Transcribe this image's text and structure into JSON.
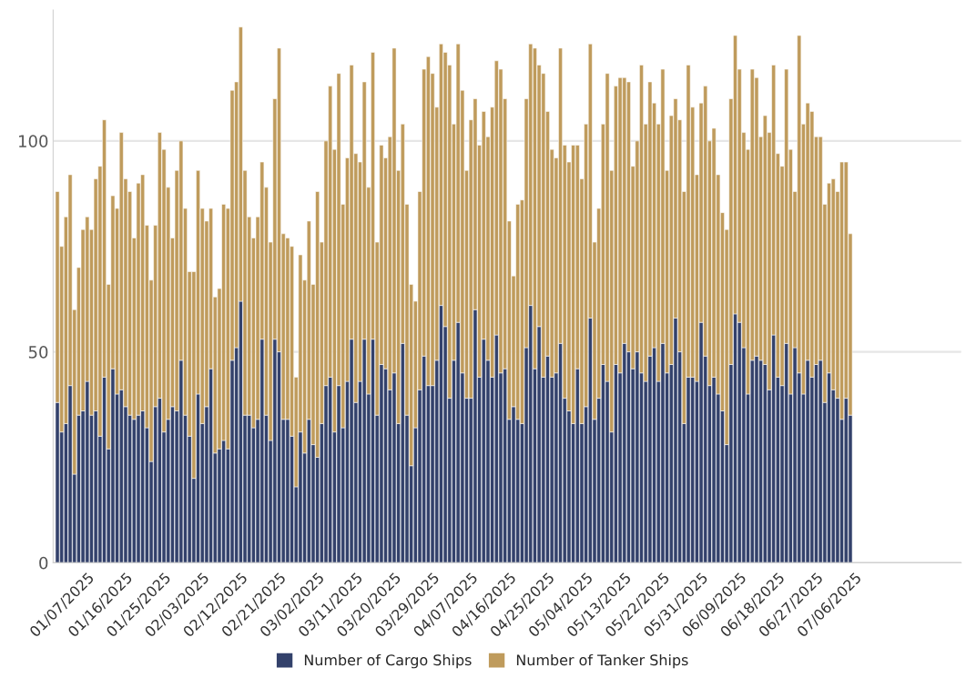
{
  "chart_data": {
    "type": "bar",
    "stacked": true,
    "x": [
      "2024-12-31",
      "2025-01-01",
      "2025-01-02",
      "2025-01-03",
      "2025-01-04",
      "2025-01-05",
      "2025-01-06",
      "2025-01-07",
      "2025-01-08",
      "2025-01-09",
      "2025-01-10",
      "2025-01-11",
      "2025-01-12",
      "2025-01-13",
      "2025-01-14",
      "2025-01-15",
      "2025-01-16",
      "2025-01-17",
      "2025-01-18",
      "2025-01-19",
      "2025-01-20",
      "2025-01-21",
      "2025-01-22",
      "2025-01-23",
      "2025-01-24",
      "2025-01-25",
      "2025-01-26",
      "2025-01-27",
      "2025-01-28",
      "2025-01-29",
      "2025-01-30",
      "2025-01-31",
      "2025-02-01",
      "2025-02-02",
      "2025-02-03",
      "2025-02-04",
      "2025-02-05",
      "2025-02-06",
      "2025-02-07",
      "2025-02-08",
      "2025-02-09",
      "2025-02-10",
      "2025-02-11",
      "2025-02-12",
      "2025-02-13",
      "2025-02-14",
      "2025-02-15",
      "2025-02-16",
      "2025-02-17",
      "2025-02-18",
      "2025-02-19",
      "2025-02-20",
      "2025-02-21",
      "2025-02-22",
      "2025-02-23",
      "2025-02-24",
      "2025-02-25",
      "2025-02-26",
      "2025-02-27",
      "2025-02-28",
      "2025-03-01",
      "2025-03-02",
      "2025-03-03",
      "2025-03-04",
      "2025-03-05",
      "2025-03-06",
      "2025-03-07",
      "2025-03-08",
      "2025-03-09",
      "2025-03-10",
      "2025-03-11",
      "2025-03-12",
      "2025-03-13",
      "2025-03-14",
      "2025-03-15",
      "2025-03-16",
      "2025-03-17",
      "2025-03-18",
      "2025-03-19",
      "2025-03-20",
      "2025-03-21",
      "2025-03-22",
      "2025-03-23",
      "2025-03-24",
      "2025-03-25",
      "2025-03-26",
      "2025-03-27",
      "2025-03-28",
      "2025-03-29",
      "2025-03-30",
      "2025-03-31",
      "2025-04-01",
      "2025-04-02",
      "2025-04-03",
      "2025-04-04",
      "2025-04-05",
      "2025-04-06",
      "2025-04-07",
      "2025-04-08",
      "2025-04-09",
      "2025-04-10",
      "2025-04-11",
      "2025-04-12",
      "2025-04-13",
      "2025-04-14",
      "2025-04-15",
      "2025-04-16",
      "2025-04-17",
      "2025-04-18",
      "2025-04-19",
      "2025-04-20",
      "2025-04-21",
      "2025-04-22",
      "2025-04-23",
      "2025-04-24",
      "2025-04-25",
      "2025-04-26",
      "2025-04-27",
      "2025-04-28",
      "2025-04-29",
      "2025-04-30",
      "2025-05-01",
      "2025-05-02",
      "2025-05-03",
      "2025-05-04",
      "2025-05-05",
      "2025-05-06",
      "2025-05-07",
      "2025-05-08",
      "2025-05-09",
      "2025-05-10",
      "2025-05-11",
      "2025-05-12",
      "2025-05-13",
      "2025-05-14",
      "2025-05-15",
      "2025-05-16",
      "2025-05-17",
      "2025-05-18",
      "2025-05-19",
      "2025-05-20",
      "2025-05-21",
      "2025-05-22",
      "2025-05-23",
      "2025-05-24",
      "2025-05-25",
      "2025-05-26",
      "2025-05-27",
      "2025-05-28",
      "2025-05-29",
      "2025-05-30",
      "2025-05-31",
      "2025-06-01",
      "2025-06-02",
      "2025-06-03",
      "2025-06-04",
      "2025-06-05",
      "2025-06-06",
      "2025-06-07",
      "2025-06-08",
      "2025-06-09",
      "2025-06-10",
      "2025-06-11",
      "2025-06-12",
      "2025-06-13",
      "2025-06-14",
      "2025-06-15",
      "2025-06-16",
      "2025-06-17",
      "2025-06-18",
      "2025-06-19",
      "2025-06-20",
      "2025-06-21",
      "2025-06-22",
      "2025-06-23",
      "2025-06-24",
      "2025-06-25",
      "2025-06-26",
      "2025-06-27",
      "2025-06-28",
      "2025-06-29",
      "2025-06-30",
      "2025-07-01",
      "2025-07-02",
      "2025-07-03",
      "2025-07-04",
      "2025-07-05"
    ],
    "series": [
      {
        "name": "Number of Cargo Ships",
        "color": "#33416b",
        "values": [
          38,
          31,
          33,
          42,
          21,
          35,
          36,
          43,
          35,
          36,
          30,
          44,
          27,
          46,
          40,
          41,
          37,
          35,
          34,
          35,
          36,
          32,
          24,
          37,
          39,
          31,
          34,
          37,
          36,
          48,
          35,
          30,
          20,
          40,
          33,
          37,
          46,
          26,
          27,
          29,
          27,
          48,
          51,
          62,
          35,
          35,
          32,
          34,
          53,
          35,
          29,
          53,
          50,
          34,
          34,
          30,
          18,
          31,
          26,
          34,
          28,
          25,
          33,
          42,
          44,
          31,
          42,
          32,
          43,
          53,
          38,
          43,
          53,
          40,
          53,
          35,
          47,
          46,
          41,
          45,
          33,
          52,
          35,
          23,
          32,
          41,
          49,
          42,
          42,
          48,
          61,
          56,
          39,
          48,
          57,
          45,
          39,
          39,
          60,
          44,
          53,
          48,
          44,
          54,
          45,
          46,
          34,
          37,
          34,
          33,
          51,
          61,
          46,
          56,
          44,
          49,
          44,
          45,
          52,
          39,
          36,
          33,
          46,
          33,
          37,
          58,
          34,
          39,
          47,
          43,
          31,
          47,
          45,
          52,
          50,
          46,
          50,
          45,
          43,
          49,
          51,
          43,
          52,
          45,
          47,
          58,
          50,
          33,
          44,
          44,
          43,
          57,
          49,
          42,
          44,
          40,
          36,
          28,
          47,
          59,
          57,
          51,
          40,
          48,
          49,
          48,
          47,
          41,
          54,
          44,
          42,
          52,
          40,
          51,
          45,
          40,
          48,
          44,
          47,
          48,
          38,
          45,
          41,
          39,
          34,
          39,
          35
        ]
      },
      {
        "name": "Number of Tanker Ships",
        "color": "#bf9b5c",
        "values": [
          50,
          44,
          49,
          50,
          39,
          35,
          43,
          39,
          44,
          55,
          64,
          61,
          39,
          41,
          44,
          61,
          54,
          53,
          43,
          55,
          56,
          48,
          43,
          43,
          63,
          67,
          55,
          40,
          57,
          52,
          49,
          39,
          49,
          53,
          51,
          44,
          38,
          37,
          38,
          56,
          57,
          64,
          63,
          65,
          58,
          47,
          45,
          48,
          42,
          54,
          47,
          57,
          72,
          44,
          43,
          45,
          26,
          42,
          41,
          47,
          38,
          63,
          43,
          58,
          69,
          67,
          74,
          53,
          53,
          65,
          59,
          52,
          61,
          49,
          68,
          41,
          52,
          50,
          60,
          77,
          60,
          52,
          50,
          43,
          30,
          47,
          68,
          78,
          74,
          60,
          62,
          65,
          79,
          56,
          66,
          67,
          54,
          66,
          50,
          55,
          54,
          53,
          64,
          65,
          72,
          64,
          47,
          31,
          51,
          53,
          59,
          62,
          76,
          62,
          72,
          58,
          54,
          51,
          70,
          60,
          59,
          66,
          53,
          58,
          67,
          65,
          42,
          45,
          57,
          73,
          62,
          66,
          70,
          63,
          64,
          48,
          50,
          73,
          61,
          65,
          58,
          61,
          65,
          48,
          59,
          52,
          55,
          55,
          74,
          64,
          49,
          52,
          64,
          58,
          59,
          52,
          47,
          51,
          63,
          66,
          60,
          51,
          58,
          69,
          66,
          53,
          59,
          61,
          64,
          53,
          52,
          65,
          58,
          37,
          80,
          64,
          61,
          63,
          54,
          53,
          47,
          45,
          50,
          49,
          61,
          56,
          43
        ]
      }
    ],
    "xlim": [
      "2024-12-30",
      "2025-07-31"
    ],
    "xticks": [
      {
        "value": "2025-01-07",
        "label": "01/07/2025"
      },
      {
        "value": "2025-01-16",
        "label": "01/16/2025"
      },
      {
        "value": "2025-01-25",
        "label": "01/25/2025"
      },
      {
        "value": "2025-02-03",
        "label": "02/03/2025"
      },
      {
        "value": "2025-02-12",
        "label": "02/12/2025"
      },
      {
        "value": "2025-02-21",
        "label": "02/21/2025"
      },
      {
        "value": "2025-03-02",
        "label": "03/02/2025"
      },
      {
        "value": "2025-03-11",
        "label": "03/11/2025"
      },
      {
        "value": "2025-03-20",
        "label": "03/20/2025"
      },
      {
        "value": "2025-03-29",
        "label": "03/29/2025"
      },
      {
        "value": "2025-04-07",
        "label": "04/07/2025"
      },
      {
        "value": "2025-04-16",
        "label": "04/16/2025"
      },
      {
        "value": "2025-04-25",
        "label": "04/25/2025"
      },
      {
        "value": "2025-05-04",
        "label": "05/04/2025"
      },
      {
        "value": "2025-05-13",
        "label": "05/13/2025"
      },
      {
        "value": "2025-05-22",
        "label": "05/22/2025"
      },
      {
        "value": "2025-05-31",
        "label": "05/31/2025"
      },
      {
        "value": "2025-06-09",
        "label": "06/09/2025"
      },
      {
        "value": "2025-06-18",
        "label": "06/18/2025"
      },
      {
        "value": "2025-06-27",
        "label": "06/27/2025"
      },
      {
        "value": "2025-07-06",
        "label": "07/06/2025"
      }
    ],
    "ylim": [
      0,
      131
    ],
    "yticks": [
      0,
      50,
      100
    ],
    "grid": "y",
    "legend": "bottom"
  }
}
